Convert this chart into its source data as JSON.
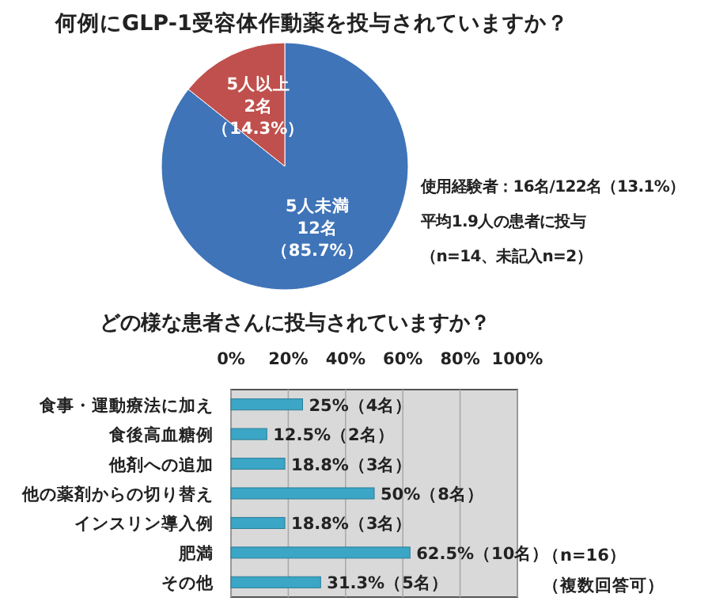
{
  "chart_data": [
    {
      "type": "pie",
      "title": "何例にGLP-1受容体作動薬を投与されていますか？",
      "categories": [
        "5人未満",
        "5人以上"
      ],
      "values": [
        12,
        2
      ],
      "colors": [
        "#3f74b8",
        "#c0504d"
      ],
      "value_labels": [
        "12名（85.7%）",
        "2名（14.3%）"
      ],
      "annotations": [
        "使用経験者：16名/122名（13.1%）",
        "平均1.9人の患者に投与",
        "（n=14、未記入n=2）"
      ]
    },
    {
      "type": "bar",
      "orientation": "horizontal",
      "title": "どの様な患者さんに投与されていますか？",
      "categories": [
        "食事・運動療法に加え",
        "食後高血糖例",
        "他剤への追加",
        "他の薬剤からの切り替え",
        "インスリン導入例",
        "肥満",
        "その他"
      ],
      "values": [
        25,
        12.5,
        18.8,
        50,
        18.8,
        62.5,
        31.3
      ],
      "color": "#3ba6c6",
      "xlim": [
        0,
        100
      ],
      "xticks": [
        {
          "value": 0,
          "label": "0%"
        },
        {
          "value": 20,
          "label": "20%"
        },
        {
          "value": 40,
          "label": "40%"
        },
        {
          "value": 60,
          "label": "60%"
        },
        {
          "value": 80,
          "label": "80%"
        },
        {
          "value": 100,
          "label": "100%"
        }
      ],
      "grid": "x",
      "value_labels": [
        "25%（4名）",
        "12.5%（2名）",
        "18.8%（3名）",
        "50%（8名）",
        "18.8%（3名）",
        "62.5%（10名）",
        "31.3%（5名）"
      ],
      "annotations": [
        "（n=16）",
        "（複数回答可）"
      ]
    }
  ]
}
